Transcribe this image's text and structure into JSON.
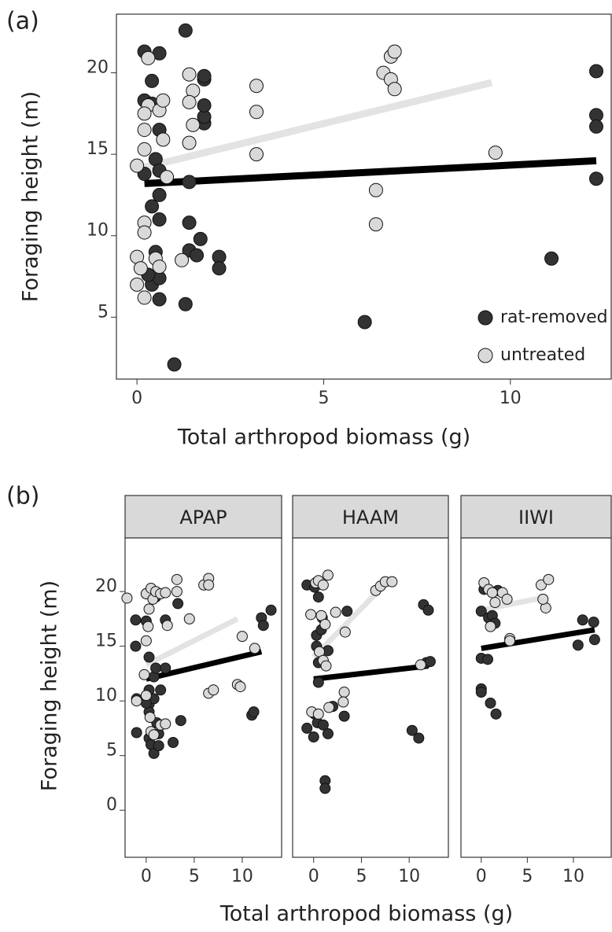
{
  "chart_data": [
    {
      "type": "scatter",
      "label": "(a)",
      "x_label": "Total arthropod biomass (g)",
      "y_label": "Foraging height (m)",
      "xlim": [
        -0.55,
        12.7
      ],
      "ylim": [
        1.2,
        23.6
      ],
      "xticks": [
        0,
        5,
        10
      ],
      "yticks": [
        5,
        10,
        15,
        20
      ],
      "legend": "bottom-right",
      "series": [
        {
          "name": "rat-removed",
          "color": "#333333",
          "x": [
            0.2,
            0.6,
            1.3,
            0.4,
            0.2,
            0.4,
            0.6,
            0.5,
            0.6,
            0.6,
            0.4,
            0.6,
            0.5,
            0.4,
            0.6,
            0.6,
            1.0,
            1.3,
            1.4,
            1.4,
            1.4,
            1.6,
            1.7,
            1.8,
            1.8,
            1.8,
            1.8,
            1.8,
            2.2,
            2.2,
            6.1,
            11.1,
            12.3,
            12.3,
            12.3,
            12.3,
            0.3,
            0.2
          ],
          "values": [
            21.3,
            21.2,
            22.6,
            19.5,
            18.3,
            18.1,
            16.5,
            14.7,
            14.0,
            12.5,
            11.8,
            11.0,
            9.0,
            7.0,
            6.1,
            7.4,
            2.1,
            5.8,
            10.8,
            13.3,
            9.1,
            8.8,
            9.8,
            16.9,
            17.3,
            18.0,
            19.6,
            19.8,
            8.7,
            8.0,
            4.7,
            8.6,
            20.1,
            17.4,
            16.7,
            13.5,
            7.6,
            13.8
          ]
        },
        {
          "name": "untreated",
          "color": "#d9d9d9",
          "x": [
            0.3,
            0.3,
            0.2,
            0.2,
            0.2,
            0.0,
            0.2,
            0.2,
            0.0,
            0.0,
            0.2,
            0.1,
            0.5,
            0.6,
            0.6,
            0.7,
            0.7,
            0.8,
            1.2,
            1.4,
            1.5,
            1.4,
            1.5,
            1.4,
            3.2,
            3.2,
            3.2,
            6.4,
            6.4,
            6.6,
            6.8,
            6.8,
            6.9,
            6.9,
            9.6
          ],
          "values": [
            20.9,
            18.0,
            17.5,
            16.5,
            15.3,
            14.3,
            10.8,
            10.2,
            8.7,
            7.0,
            6.2,
            8.0,
            8.6,
            8.1,
            17.7,
            18.3,
            15.9,
            13.6,
            8.5,
            19.9,
            18.9,
            18.2,
            16.8,
            15.7,
            19.2,
            17.6,
            15.0,
            12.8,
            10.7,
            20.0,
            19.6,
            21.0,
            21.3,
            19.0,
            15.1
          ]
        }
      ],
      "fits": [
        {
          "color": "#000000",
          "x": [
            0.2,
            12.3
          ],
          "values": [
            13.2,
            14.6
          ]
        },
        {
          "color": "#e3e3e3",
          "x": [
            0.2,
            9.5
          ],
          "values": [
            14.2,
            19.4
          ]
        }
      ]
    },
    {
      "type": "scatter",
      "label": "(b)",
      "x_label": "Total arthropod biomass (g)",
      "y_label": "Foraging height (m)",
      "xlim": [
        -2.2,
        14.1
      ],
      "ylim": [
        -4.3,
        24.9
      ],
      "xticks": [
        0,
        5,
        10
      ],
      "yticks": [
        0,
        5,
        10,
        15,
        20
      ],
      "facets": [
        {
          "title": "APAP",
          "series": [
            {
              "color": "#333333",
              "x": [
                -1.1,
                -1.1,
                -1.0,
                -1.0,
                0,
                0,
                0.3,
                0.3,
                0.3,
                0.3,
                0.3,
                0.5,
                0.8,
                0.8,
                0.8,
                1.0,
                1.0,
                1.3,
                1.3,
                1.5,
                2.0,
                2.0,
                2.8,
                3.3,
                3.6,
                11.0,
                11.2,
                12.0,
                12.2,
                13.0,
                0.0,
                1.1
              ],
              "values": [
                17.4,
                15.0,
                10.2,
                7.1,
                19.8,
                17.3,
                14.0,
                11.0,
                9.7,
                9.0,
                6.6,
                6.0,
                5.2,
                12.2,
                10.2,
                19.5,
                13.0,
                7.0,
                5.9,
                11.0,
                17.4,
                13.0,
                6.2,
                18.9,
                8.2,
                8.7,
                9.0,
                17.6,
                16.9,
                18.3,
                9.8,
                8.0
              ]
            },
            {
              "color": "#d9d9d9",
              "x": [
                -2.0,
                0,
                0.5,
                0.7,
                1.0,
                1.5,
                2.0,
                3.2,
                3.2,
                4.5,
                6.0,
                6.5,
                6.5,
                -0.2,
                0,
                -1.0,
                0.4,
                0.5,
                1.5,
                2.0,
                0.8,
                0.2,
                0.3,
                6.5,
                7.0,
                9.5,
                9.8,
                10.0,
                11.3,
                2.2,
                0
              ],
              "values": [
                19.4,
                19.8,
                20.3,
                19.3,
                20.0,
                19.8,
                19.9,
                21.1,
                20.0,
                17.5,
                20.6,
                21.2,
                20.6,
                12.4,
                10.5,
                10.0,
                8.5,
                7.2,
                7.8,
                7.9,
                6.9,
                16.8,
                18.4,
                10.7,
                11.0,
                11.5,
                11.3,
                15.9,
                14.8,
                16.9,
                15.5
              ]
            }
          ],
          "fits": [
            {
              "color": "#000000",
              "x": [
                0,
                12
              ],
              "values": [
                12.0,
                14.5
              ]
            },
            {
              "color": "#e3e3e3",
              "x": [
                0,
                9.5
              ],
              "values": [
                13.3,
                17.5
              ]
            }
          ]
        },
        {
          "title": "HAAM",
          "series": [
            {
              "color": "#333333",
              "x": [
                -0.7,
                0.1,
                0.5,
                0.9,
                0.3,
                0.3,
                0.8,
                0.5,
                1.5,
                3.5,
                0.5,
                0.1,
                0.4,
                1.0,
                0.0,
                1.5,
                -0.7,
                2.0,
                3.2,
                1.2,
                1.2,
                10.3,
                11.0,
                11.5,
                12.0,
                11.8,
                12.2
              ],
              "values": [
                20.6,
                20.4,
                19.5,
                17.6,
                16.0,
                15.0,
                16.5,
                13.5,
                14.6,
                18.2,
                11.7,
                8.8,
                8.0,
                7.8,
                6.7,
                7.0,
                7.5,
                9.5,
                8.6,
                2.7,
                2.0,
                7.3,
                6.6,
                18.8,
                18.3,
                13.5,
                13.6
              ]
            },
            {
              "color": "#d9d9d9",
              "x": [
                -0.3,
                0.2,
                0.5,
                1.0,
                1.5,
                0.8,
                1.2,
                0.6,
                1.0,
                1.3,
                2.3,
                3.3,
                3.2,
                3.1,
                -0.2,
                0.5,
                1.6,
                6.5,
                7.0,
                7.5,
                8.2,
                11.2
              ],
              "values": [
                17.9,
                20.8,
                21.0,
                20.6,
                21.5,
                17.8,
                17.0,
                14.5,
                13.7,
                13.2,
                18.1,
                16.3,
                10.8,
                9.9,
                9.0,
                8.8,
                9.4,
                20.1,
                20.5,
                20.9,
                20.9,
                13.3
              ]
            }
          ],
          "fits": [
            {
              "color": "#000000",
              "x": [
                0,
                12
              ],
              "values": [
                12.0,
                13.2
              ]
            },
            {
              "color": "#e3e3e3",
              "x": [
                0,
                6.5
              ],
              "values": [
                14.0,
                19.8
              ]
            }
          ]
        },
        {
          "title": "IIWI",
          "series": [
            {
              "color": "#333333",
              "x": [
                0.3,
                1.8,
                0,
                0.8,
                1.2,
                1.5,
                0,
                0.7,
                0.0,
                0.0,
                1.0,
                1.6,
                10.5,
                11.0,
                12.2,
                12.3
              ],
              "values": [
                20.2,
                20.1,
                18.2,
                17.6,
                17.8,
                17.1,
                13.9,
                13.8,
                11.1,
                10.8,
                9.8,
                8.8,
                15.1,
                17.4,
                17.2,
                15.6
              ]
            },
            {
              "color": "#d9d9d9",
              "x": [
                0.3,
                0.8,
                1.5,
                2.3,
                2.8,
                3.1,
                3.1,
                1.2,
                1.0,
                6.5,
                7.3,
                7.0,
                6.7
              ],
              "values": [
                20.8,
                20.2,
                19.0,
                19.9,
                19.3,
                15.7,
                15.5,
                19.9,
                16.8,
                20.6,
                21.1,
                18.5,
                19.3
              ]
            }
          ],
          "fits": [
            {
              "color": "#000000",
              "x": [
                0,
                12.3
              ],
              "values": [
                14.8,
                16.5
              ]
            },
            {
              "color": "#e3e3e3",
              "x": [
                0,
                6.5
              ],
              "values": [
                18.3,
                19.4
              ]
            }
          ]
        }
      ]
    }
  ]
}
